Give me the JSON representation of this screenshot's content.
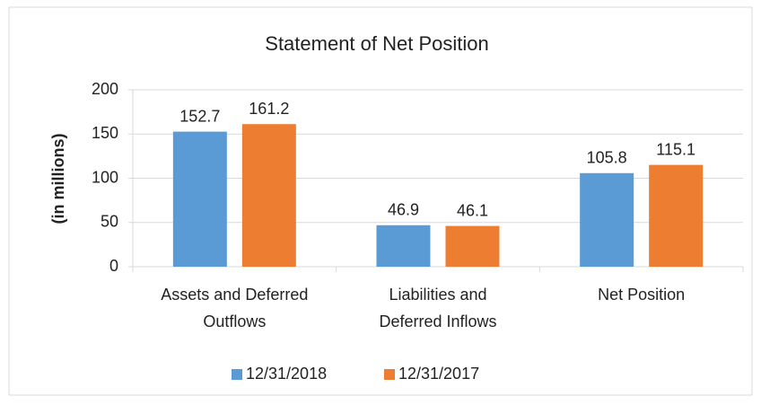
{
  "chart_data": {
    "type": "bar",
    "title": "Statement of Net Position",
    "y_label": "(in millions)",
    "categories": [
      "Assets and Deferred Outflows",
      "Liabilities and Deferred Inflows",
      "Net Position"
    ],
    "series": [
      {
        "name": "12/31/2018",
        "color": "#5b9bd5",
        "values": [
          152.7,
          46.9,
          105.8
        ]
      },
      {
        "name": "12/31/2017",
        "color": "#ed7d31",
        "values": [
          161.2,
          46.1,
          115.1
        ]
      }
    ],
    "ylim": [
      0,
      200
    ],
    "yticks": [
      0,
      50,
      100,
      150,
      200
    ],
    "grid": true,
    "legend": "bottom"
  }
}
